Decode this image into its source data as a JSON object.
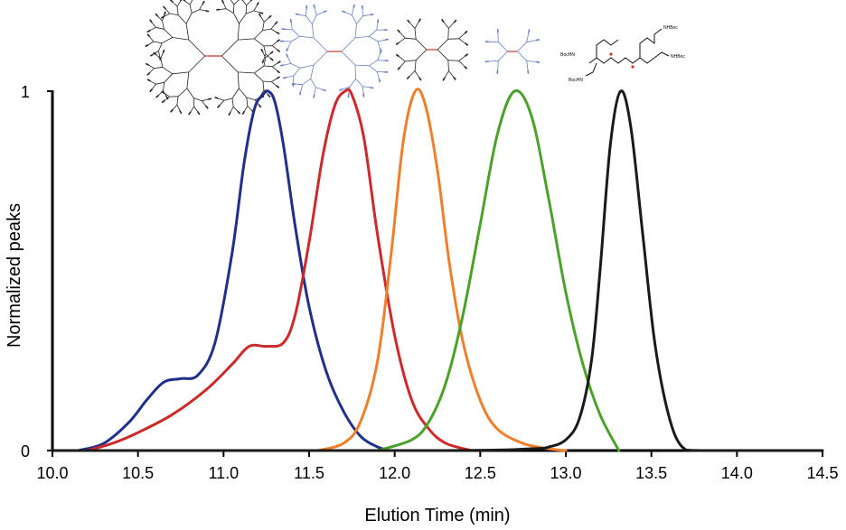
{
  "chart_data": {
    "type": "line",
    "title": "",
    "xlabel": "Elution Time (min)",
    "ylabel": "Normalized  peaks",
    "xlim": [
      10.0,
      14.5
    ],
    "ylim": [
      0,
      1
    ],
    "x_ticks": [
      "10.0",
      "10.5",
      "11.0",
      "11.5",
      "12.0",
      "12.5",
      "13.0",
      "13.5",
      "14.0",
      "14.5"
    ],
    "y_ticks": [
      "0",
      "1"
    ],
    "grid": false,
    "legend": "none",
    "series": [
      {
        "color": "#1f2f8a",
        "x": [
          10.15,
          10.3,
          10.45,
          10.55,
          10.65,
          10.75,
          10.85,
          10.95,
          11.05,
          11.12,
          11.18,
          11.23,
          11.26,
          11.3,
          11.35,
          11.42,
          11.5,
          11.6,
          11.7,
          11.8,
          11.9,
          11.97
        ],
        "y": [
          0,
          0.02,
          0.08,
          0.14,
          0.19,
          0.2,
          0.21,
          0.3,
          0.55,
          0.8,
          0.95,
          0.99,
          1.0,
          0.97,
          0.85,
          0.62,
          0.4,
          0.22,
          0.11,
          0.04,
          0.01,
          0
        ]
      },
      {
        "color": "#cc2a2a",
        "x": [
          10.2,
          10.35,
          10.5,
          10.7,
          10.9,
          11.05,
          11.15,
          11.25,
          11.35,
          11.42,
          11.5,
          11.58,
          11.65,
          11.71,
          11.75,
          11.82,
          11.9,
          12.0,
          12.1,
          12.2,
          12.3,
          12.45
        ],
        "y": [
          0,
          0.02,
          0.05,
          0.1,
          0.17,
          0.24,
          0.29,
          0.29,
          0.3,
          0.38,
          0.58,
          0.82,
          0.96,
          1.0,
          0.99,
          0.87,
          0.6,
          0.32,
          0.14,
          0.06,
          0.02,
          0
        ]
      },
      {
        "color": "#f07f2b",
        "x": [
          11.55,
          11.7,
          11.8,
          11.9,
          11.98,
          12.05,
          12.12,
          12.18,
          12.25,
          12.32,
          12.4,
          12.5,
          12.6,
          12.75,
          12.9,
          13.0
        ],
        "y": [
          0,
          0.02,
          0.08,
          0.25,
          0.55,
          0.86,
          1.0,
          0.96,
          0.78,
          0.52,
          0.3,
          0.14,
          0.06,
          0.02,
          0.005,
          0
        ]
      },
      {
        "color": "#4aa22a",
        "x": [
          11.9,
          12.1,
          12.2,
          12.3,
          12.4,
          12.5,
          12.6,
          12.7,
          12.8,
          12.9,
          13.0,
          13.1,
          13.2,
          13.31
        ],
        "y": [
          0,
          0.03,
          0.08,
          0.19,
          0.38,
          0.63,
          0.88,
          1.0,
          0.93,
          0.7,
          0.44,
          0.24,
          0.1,
          0
        ]
      },
      {
        "color": "#1a1a1a",
        "x": [
          10.0,
          12.3,
          12.8,
          12.9,
          13.0,
          13.08,
          13.15,
          13.2,
          13.26,
          13.32,
          13.38,
          13.45,
          13.52,
          13.6,
          13.68,
          13.8,
          14.5
        ],
        "y": [
          0,
          0,
          0.005,
          0.01,
          0.03,
          0.09,
          0.25,
          0.5,
          0.85,
          1.0,
          0.9,
          0.6,
          0.3,
          0.1,
          0.01,
          0,
          0
        ]
      }
    ]
  },
  "structures": [
    {
      "name": "dendrimer-g4",
      "color": "#222222"
    },
    {
      "name": "dendrimer-g3",
      "color": "#6b7fc4"
    },
    {
      "name": "dendrimer-g2",
      "color": "#222222"
    },
    {
      "name": "dendrimer-g1",
      "color": "#6b7fc4"
    },
    {
      "name": "monomer",
      "color": "#111111",
      "labels": [
        "NHBoc",
        "NHBoc",
        "BocHN",
        "BocHN"
      ]
    }
  ]
}
